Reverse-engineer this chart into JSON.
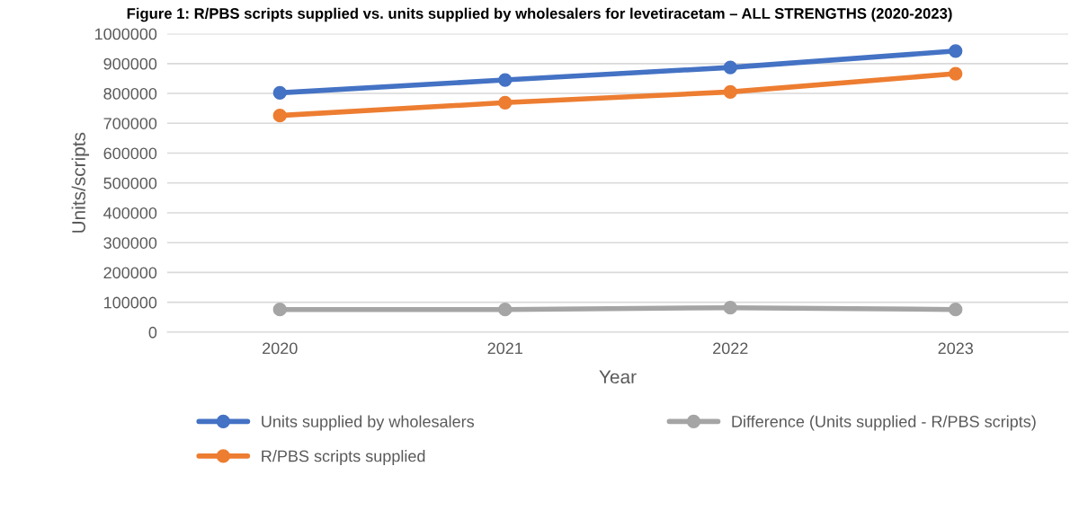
{
  "chart_data": {
    "type": "line",
    "title": "Figure 1: R/PBS scripts supplied vs. units supplied by wholesalers for levetiracetam – ALL STRENGTHS (2020-2023)",
    "xlabel": "Year",
    "ylabel": "Units/scripts",
    "categories": [
      "2020",
      "2021",
      "2022",
      "2023"
    ],
    "series": [
      {
        "name": "Units supplied by wholesalers",
        "color": "#4472c4",
        "values": [
          802000,
          845000,
          887000,
          942000
        ]
      },
      {
        "name": "R/PBS scripts supplied",
        "color": "#ed7d31",
        "values": [
          726000,
          769000,
          805000,
          866000
        ]
      },
      {
        "name": "Difference (Units supplied - R/PBS scripts)",
        "color": "#a5a5a5",
        "values": [
          76000,
          76000,
          82000,
          76000
        ]
      }
    ],
    "ylim": [
      0,
      1000000
    ],
    "yticks": [
      0,
      100000,
      200000,
      300000,
      400000,
      500000,
      600000,
      700000,
      800000,
      900000,
      1000000
    ],
    "grid": "y",
    "legend": "bottom",
    "marker": "circle",
    "line_style": "solid"
  }
}
